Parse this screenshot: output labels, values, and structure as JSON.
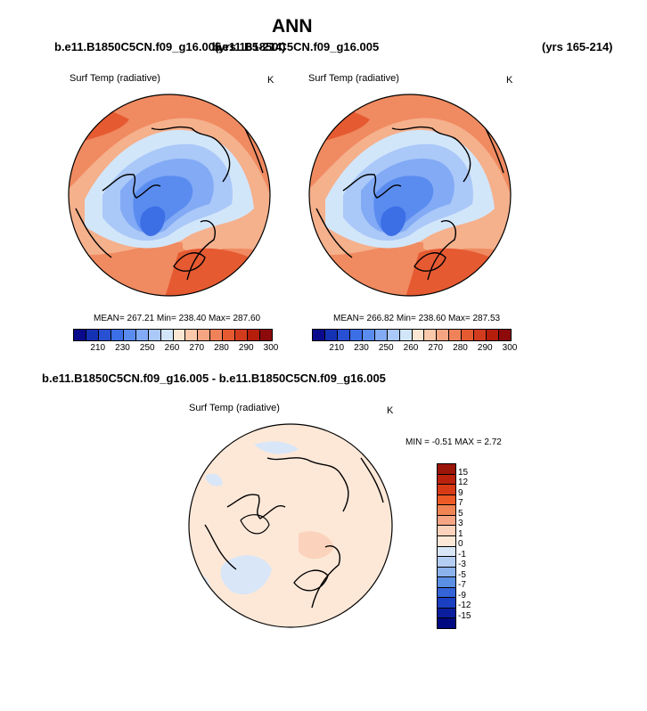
{
  "page_title": "ANN",
  "header": {
    "case_left": "b.e11.B1850C5CN.f09_g16.005",
    "case_left_years": "(yrs 165-214)",
    "case_right": "b.e11.B1850C5CN.f09_g16.005",
    "case_right_years": "(yrs 165-214)"
  },
  "panels": [
    {
      "variable": "Surf Temp (radiative)",
      "units": "K",
      "stats": "MEAN= 267.21  Min= 238.40  Max= 287.60"
    },
    {
      "variable": "Surf Temp (radiative)",
      "units": "K",
      "stats": "MEAN= 266.82  Min= 238.60  Max= 287.53"
    }
  ],
  "colorbar": {
    "labels": [
      "210",
      "230",
      "250",
      "260",
      "270",
      "280",
      "290",
      "300"
    ],
    "colors": [
      "#0a0a8c",
      "#1432b4",
      "#2850d2",
      "#3c6ee6",
      "#5a8cf0",
      "#82aaf5",
      "#aac8f8",
      "#d2e6fa",
      "#fae6d2",
      "#fac8aa",
      "#f5a582",
      "#f0825a",
      "#e65a32",
      "#d23c1e",
      "#b41e0a",
      "#8c0a0a"
    ]
  },
  "diff": {
    "title": "b.e11.B1850C5CN.f09_g16.005 - b.e11.B1850C5CN.f09_g16.005",
    "variable": "Surf Temp (radiative)",
    "units": "K",
    "minmax": "MIN =  -0.51 MAX =   2.72",
    "colorbar_labels": [
      "15",
      "12",
      "9",
      "7",
      "5",
      "3",
      "1",
      "0",
      "-1",
      "-3",
      "-5",
      "-7",
      "-9",
      "-12",
      "-15"
    ],
    "colorbar_colors": [
      "#9b1508",
      "#bb220e",
      "#d83a16",
      "#ee5a26",
      "#f08454",
      "#f5a584",
      "#fbd2bb",
      "#fde8d8",
      "#d8e6f8",
      "#b4cdf2",
      "#8cb2ec",
      "#5a8fe4",
      "#3464d8",
      "#1a3fc0",
      "#0a1e9e",
      "#000a80"
    ]
  }
}
